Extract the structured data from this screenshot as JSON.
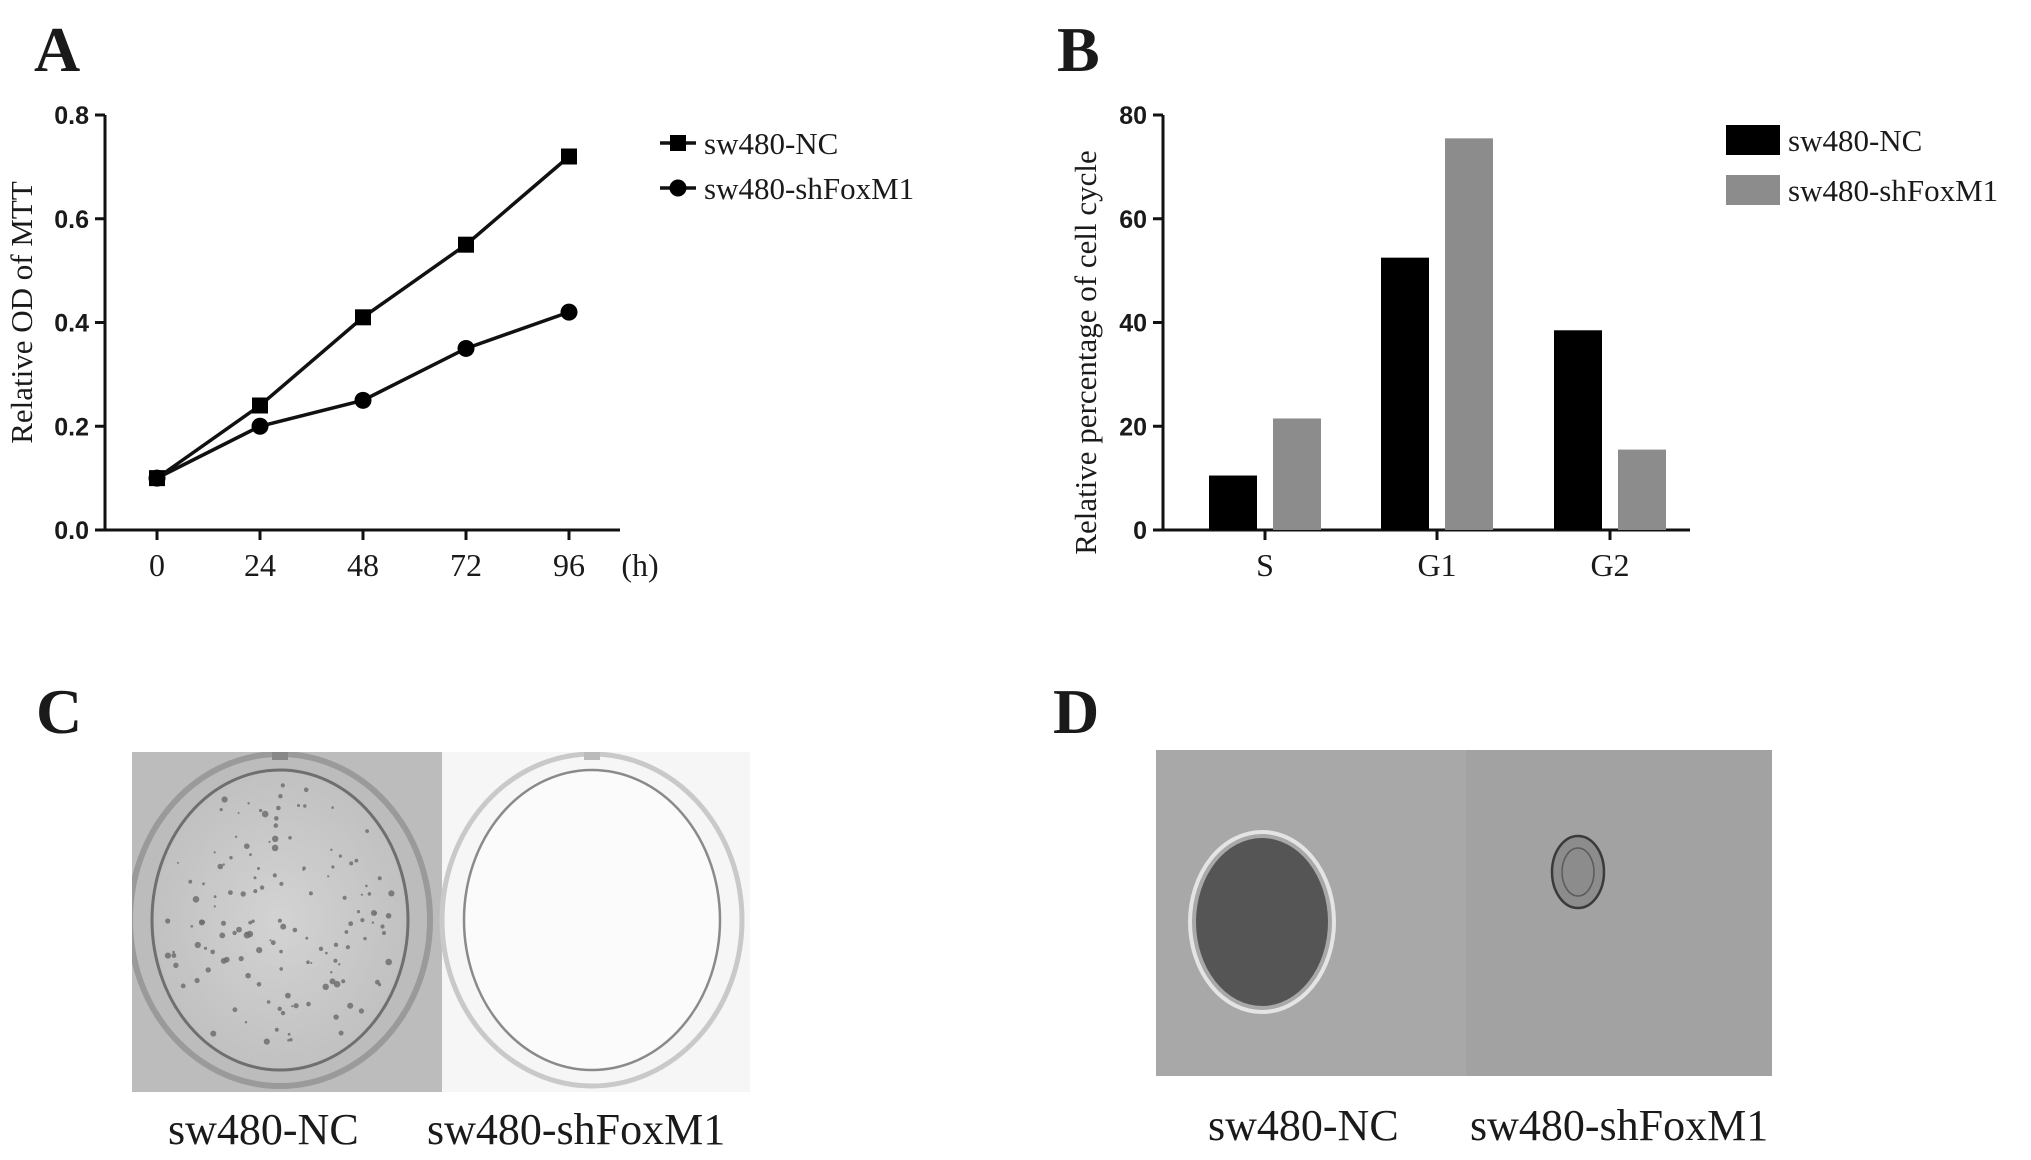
{
  "panels": {
    "a": "A",
    "b": "B",
    "c": "C",
    "d": "D"
  },
  "chart_data": [
    {
      "type": "line",
      "ylabel": "Relative OD of MTT",
      "xunit": "(h)",
      "x": [
        0,
        24,
        48,
        72,
        96
      ],
      "xticks": [
        "0",
        "24",
        "48",
        "72",
        "96"
      ],
      "yticks": [
        "0.0",
        "0.2",
        "0.4",
        "0.6",
        "0.8"
      ],
      "ylim": [
        0,
        0.8
      ],
      "legend_position": "top-right",
      "series": [
        {
          "name": "sw480-NC",
          "marker": "square",
          "values": [
            0.1,
            0.24,
            0.41,
            0.55,
            0.72
          ]
        },
        {
          "name": "sw480-shFoxM1",
          "marker": "circle",
          "values": [
            0.1,
            0.2,
            0.25,
            0.35,
            0.42
          ]
        }
      ]
    },
    {
      "type": "bar",
      "ylabel": "Relative percentage of cell cycle",
      "categories": [
        "S",
        "G1",
        "G2"
      ],
      "yticks": [
        "0",
        "20",
        "40",
        "60",
        "80"
      ],
      "ylim": [
        0,
        80
      ],
      "legend_position": "top-right",
      "series": [
        {
          "name": "sw480-NC",
          "color": "#000000",
          "values": [
            10.5,
            52.5,
            38.5
          ]
        },
        {
          "name": "sw480-shFoxM1",
          "color": "#8c8c8c",
          "values": [
            21.5,
            75.5,
            15.5
          ]
        }
      ]
    }
  ],
  "photos": {
    "colony": {
      "left_label": "sw480-NC",
      "right_label": "sw480-shFoxM1"
    },
    "sphere": {
      "left_label": "sw480-NC",
      "right_label": "sw480-shFoxM1"
    }
  }
}
